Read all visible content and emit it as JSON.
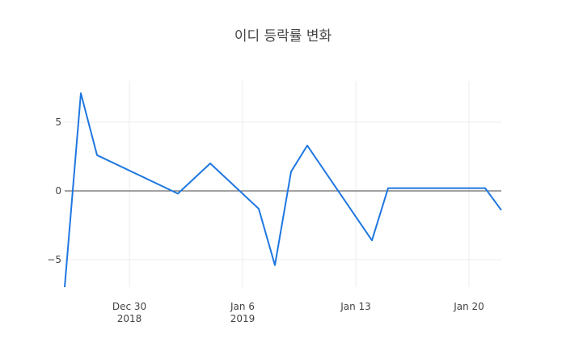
{
  "chart_data": {
    "type": "line",
    "title": "이디 등락률 변화",
    "xlabel": "",
    "ylabel": "",
    "x_range": [
      "2018-12-26",
      "2019-01-22"
    ],
    "ylim": [
      -7.0,
      8.0
    ],
    "x_ticks": [
      {
        "date": "2018-12-30",
        "label": "Dec 30",
        "sublabel": "2018"
      },
      {
        "date": "2019-01-06",
        "label": "Jan 6",
        "sublabel": "2019"
      },
      {
        "date": "2019-01-13",
        "label": "Jan 13",
        "sublabel": ""
      },
      {
        "date": "2019-01-20",
        "label": "Jan 20",
        "sublabel": ""
      }
    ],
    "y_ticks": [
      {
        "value": 5,
        "label": "5"
      },
      {
        "value": 0,
        "label": "0"
      },
      {
        "value": -5,
        "label": "−5"
      }
    ],
    "grid": true,
    "zero_line": true,
    "series": [
      {
        "color": "#1f77e0",
        "x": [
          "2018-12-26",
          "2018-12-27",
          "2018-12-28",
          "2019-01-02",
          "2019-01-04",
          "2019-01-07",
          "2019-01-08",
          "2019-01-09",
          "2019-01-10",
          "2019-01-14",
          "2019-01-15",
          "2019-01-21",
          "2019-01-22"
        ],
        "y": [
          -7.0,
          7.1,
          2.6,
          -0.2,
          2.0,
          -1.3,
          -5.4,
          1.4,
          3.3,
          -3.6,
          0.2,
          0.2,
          -1.4
        ]
      }
    ]
  }
}
